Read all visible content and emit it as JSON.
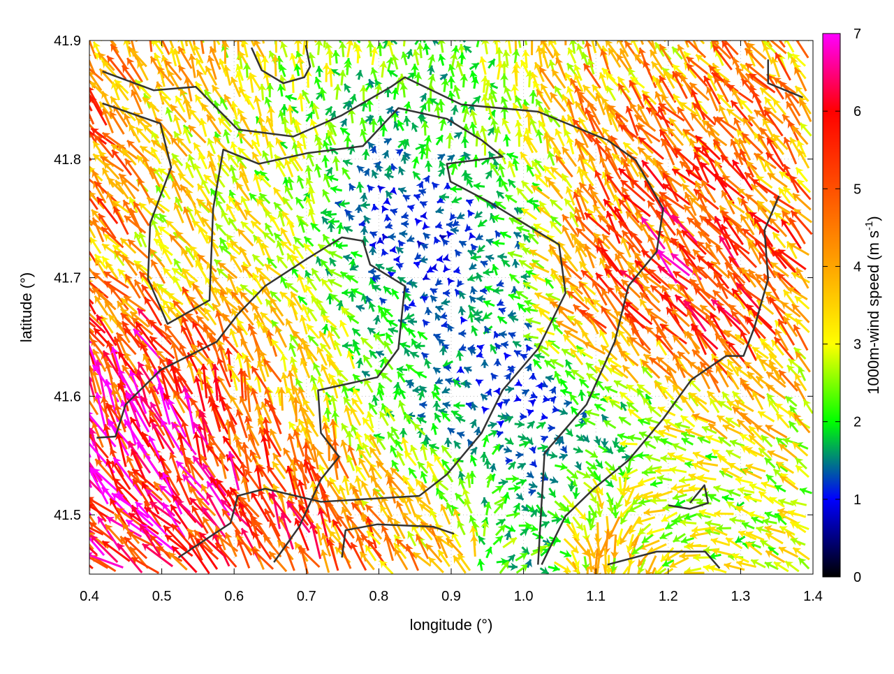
{
  "chart_data": {
    "type": "vector-field",
    "title": "",
    "xlabel": "longitude (°)",
    "ylabel": "latitude (°)",
    "xlim": [
      0.4,
      1.4
    ],
    "ylim": [
      41.45,
      41.9
    ],
    "xticks": [
      "0.4",
      "0.5",
      "0.6",
      "0.7",
      "0.8",
      "0.9",
      "1.0",
      "1.1",
      "1.2",
      "1.3",
      "1.4"
    ],
    "yticks": [
      "41.5",
      "41.6",
      "41.7",
      "41.8",
      "41.9"
    ],
    "grid": true,
    "colorbar": {
      "label": "1000m-wind speed (m s",
      "label_sup": "-1",
      "label_end": ")",
      "range": [
        0,
        7
      ],
      "ticks": [
        "0",
        "1",
        "2",
        "3",
        "4",
        "5",
        "6",
        "7"
      ],
      "stops": [
        {
          "v": 0,
          "color": "#000000"
        },
        {
          "v": 1,
          "color": "#0000ff"
        },
        {
          "v": 1.5,
          "color": "#007f7f"
        },
        {
          "v": 2,
          "color": "#00ff00"
        },
        {
          "v": 3,
          "color": "#ffff00"
        },
        {
          "v": 4,
          "color": "#ffa500"
        },
        {
          "v": 5,
          "color": "#ff5000"
        },
        {
          "v": 6,
          "color": "#ff0000"
        },
        {
          "v": 7,
          "color": "#ff00ff"
        }
      ]
    },
    "wind_sample_grid": {
      "lon": [
        0.4,
        0.5,
        0.6,
        0.7,
        0.8,
        0.9,
        1.0,
        1.1,
        1.2,
        1.3,
        1.4
      ],
      "lat": [
        41.9,
        41.85,
        41.8,
        41.75,
        41.7,
        41.65,
        41.6,
        41.55,
        41.5,
        41.45
      ],
      "speed_m_s": [
        [
          4,
          4,
          3.5,
          3,
          2.5,
          2,
          3,
          3.5,
          3.5,
          4,
          4
        ],
        [
          4.5,
          3.5,
          3,
          2.5,
          2,
          2,
          3,
          4,
          4,
          4.5,
          4
        ],
        [
          5,
          3.5,
          3,
          2.5,
          1.5,
          2,
          2.5,
          4,
          4.5,
          4.5,
          4
        ],
        [
          5,
          3.5,
          3,
          2.5,
          1,
          1,
          2,
          4.5,
          5,
          5,
          4.5
        ],
        [
          4,
          3.5,
          3.5,
          2.5,
          1.5,
          1,
          2,
          4.5,
          5.5,
          5,
          4.5
        ],
        [
          5,
          5,
          4,
          3,
          2,
          1.5,
          1.5,
          4,
          5,
          5,
          4
        ],
        [
          6,
          6,
          4.5,
          3.5,
          2,
          1.5,
          1,
          2,
          3,
          4,
          3.5
        ],
        [
          6.5,
          6,
          5,
          4,
          3,
          2,
          1.5,
          2,
          2.5,
          3,
          3
        ],
        [
          6,
          6.5,
          5.5,
          5,
          4,
          3,
          1.5,
          3.5,
          3,
          2.5,
          3
        ],
        [
          5.5,
          6,
          5.5,
          5,
          4.5,
          3.5,
          2,
          3.5,
          3,
          3,
          3
        ]
      ],
      "direction_toward_deg": [
        [
          330,
          340,
          350,
          350,
          0,
          0,
          350,
          340,
          330,
          330,
          330
        ],
        [
          320,
          330,
          340,
          350,
          0,
          0,
          350,
          330,
          320,
          320,
          320
        ],
        [
          320,
          320,
          330,
          340,
          0,
          20,
          340,
          330,
          320,
          320,
          320
        ],
        [
          320,
          320,
          330,
          330,
          300,
          270,
          300,
          330,
          320,
          320,
          315
        ],
        [
          320,
          320,
          320,
          320,
          300,
          270,
          300,
          325,
          320,
          320,
          315
        ],
        [
          320,
          320,
          330,
          330,
          320,
          300,
          280,
          320,
          320,
          320,
          315
        ],
        [
          335,
          335,
          340,
          340,
          330,
          300,
          90,
          300,
          320,
          320,
          320
        ],
        [
          335,
          335,
          340,
          345,
          340,
          330,
          100,
          120,
          280,
          300,
          300
        ],
        [
          315,
          320,
          330,
          340,
          330,
          320,
          90,
          180,
          250,
          290,
          300
        ],
        [
          300,
          310,
          320,
          330,
          330,
          320,
          60,
          180,
          220,
          290,
          300
        ]
      ]
    },
    "contours": [
      [
        [
          0.418,
          41.847
        ],
        [
          0.498,
          41.83
        ],
        [
          0.513,
          41.793
        ],
        [
          0.484,
          41.746
        ],
        [
          0.481,
          41.699
        ],
        [
          0.508,
          41.661
        ],
        [
          0.566,
          41.681
        ],
        [
          0.571,
          41.758
        ],
        [
          0.585,
          41.808
        ],
        [
          0.634,
          41.796
        ],
        [
          0.701,
          41.805
        ],
        [
          0.778,
          41.811
        ],
        [
          0.827,
          41.843
        ],
        [
          0.894,
          41.834
        ],
        [
          0.942,
          41.816
        ],
        [
          0.971,
          41.802
        ],
        [
          0.894,
          41.796
        ],
        [
          0.899,
          41.781
        ],
        [
          0.952,
          41.764
        ],
        [
          1.0,
          41.746
        ],
        [
          1.049,
          41.728
        ],
        [
          1.058,
          41.687
        ],
        [
          1.02,
          41.64
        ],
        [
          0.971,
          41.605
        ],
        [
          0.942,
          41.569
        ],
        [
          0.894,
          41.534
        ],
        [
          0.856,
          41.516
        ],
        [
          0.72,
          41.511
        ],
        [
          0.643,
          41.522
        ],
        [
          0.605,
          41.516
        ],
        [
          0.595,
          41.493
        ],
        [
          0.523,
          41.464
        ]
      ],
      [
        [
          0.418,
          41.874
        ],
        [
          0.489,
          41.858
        ],
        [
          0.547,
          41.861
        ],
        [
          0.605,
          41.825
        ],
        [
          0.682,
          41.819
        ],
        [
          0.749,
          41.837
        ],
        [
          0.817,
          41.861
        ],
        [
          0.836,
          41.869
        ],
        [
          0.914,
          41.846
        ],
        [
          1.02,
          41.84
        ],
        [
          1.116,
          41.816
        ],
        [
          1.155,
          41.799
        ],
        [
          1.193,
          41.758
        ],
        [
          1.184,
          41.722
        ],
        [
          1.145,
          41.693
        ],
        [
          1.126,
          41.646
        ],
        [
          1.087,
          41.593
        ],
        [
          1.029,
          41.552
        ],
        [
          1.02,
          41.458
        ]
      ],
      [
        [
          0.655,
          41.46
        ],
        [
          0.69,
          41.49
        ],
        [
          0.72,
          41.53
        ],
        [
          0.745,
          41.549
        ],
        [
          0.72,
          41.569
        ],
        [
          0.716,
          41.605
        ],
        [
          0.798,
          41.616
        ],
        [
          0.827,
          41.64
        ],
        [
          0.836,
          41.693
        ],
        [
          0.788,
          41.711
        ],
        [
          0.778,
          41.731
        ],
        [
          0.749,
          41.734
        ],
        [
          0.701,
          41.716
        ],
        [
          0.643,
          41.693
        ],
        [
          0.605,
          41.669
        ],
        [
          0.576,
          41.646
        ],
        [
          0.498,
          41.622
        ],
        [
          0.45,
          41.593
        ],
        [
          0.436,
          41.566
        ],
        [
          0.41,
          41.565
        ]
      ],
      [
        [
          1.353,
          41.769
        ],
        [
          1.333,
          41.74
        ],
        [
          1.338,
          41.699
        ],
        [
          1.319,
          41.658
        ],
        [
          1.304,
          41.634
        ],
        [
          1.28,
          41.634
        ],
        [
          1.232,
          41.614
        ],
        [
          1.193,
          41.581
        ],
        [
          1.145,
          41.546
        ],
        [
          1.097,
          41.522
        ],
        [
          1.058,
          41.499
        ],
        [
          1.025,
          41.458
        ]
      ],
      [
        [
          0.749,
          41.464
        ],
        [
          0.754,
          41.487
        ],
        [
          0.798,
          41.492
        ],
        [
          0.875,
          41.49
        ],
        [
          0.904,
          41.484
        ]
      ],
      [
        [
          1.116,
          41.458
        ],
        [
          1.184,
          41.469
        ],
        [
          1.251,
          41.469
        ],
        [
          1.271,
          41.455
        ]
      ],
      [
        [
          0.624,
          41.894
        ],
        [
          0.638,
          41.875
        ],
        [
          0.668,
          41.864
        ],
        [
          0.697,
          41.869
        ],
        [
          0.705,
          41.878
        ],
        [
          0.699,
          41.896
        ]
      ],
      [
        [
          1.338,
          41.884
        ],
        [
          1.338,
          41.864
        ],
        [
          1.386,
          41.852
        ]
      ],
      [
        [
          1.23,
          41.51
        ],
        [
          1.25,
          41.525
        ],
        [
          1.255,
          41.51
        ],
        [
          1.23,
          41.505
        ],
        [
          1.2,
          41.508
        ]
      ]
    ]
  }
}
